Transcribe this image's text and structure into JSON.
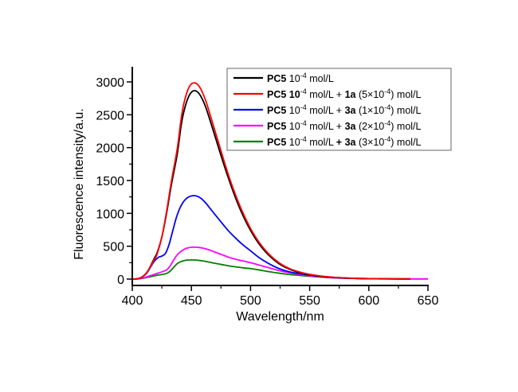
{
  "chart_data": {
    "type": "line",
    "title": "",
    "xlabel": "Wavelength/nm",
    "ylabel": "Fluorescence intensity/a.u.",
    "xlim": [
      400,
      650
    ],
    "ylim": [
      0,
      3250
    ],
    "xticks": [
      400,
      450,
      500,
      550,
      600,
      650
    ],
    "xtick_labels": [
      "400",
      "450",
      "500",
      "550",
      "600",
      "650"
    ],
    "yticks": [
      0,
      500,
      1000,
      1500,
      2000,
      2500,
      3000
    ],
    "ytick_labels": [
      "0",
      "500",
      "1000",
      "1500",
      "2000",
      "2500",
      "3000"
    ],
    "grid": false,
    "legend_position": "top-right",
    "series": [
      {
        "name": "PC5 10-4 mol/L",
        "legend": [
          {
            "text": "PC5",
            "bold": true
          },
          {
            "text": " 10",
            "bold": false
          },
          {
            "text": "-4",
            "sup": true
          },
          {
            "text": " mol/L",
            "bold": false
          }
        ],
        "color": "#000000",
        "x": [
          400,
          404,
          407,
          410,
          413,
          416,
          419,
          421,
          425,
          429,
          433,
          438,
          441,
          443,
          446,
          449,
          452,
          455,
          458,
          462,
          466,
          470,
          475,
          481,
          487,
          493,
          500,
          507,
          515,
          524,
          533,
          542,
          550,
          560,
          570,
          580,
          590,
          600,
          610,
          620,
          635
        ],
        "y": [
          0,
          5,
          20,
          55,
          120,
          220,
          330,
          400,
          640,
          1000,
          1430,
          1900,
          2300,
          2500,
          2700,
          2820,
          2865,
          2850,
          2780,
          2620,
          2400,
          2170,
          1880,
          1550,
          1250,
          990,
          740,
          540,
          370,
          235,
          150,
          95,
          65,
          40,
          25,
          16,
          10,
          6,
          4,
          3,
          2
        ]
      },
      {
        "name": "PC5 10-4 mol/L + 1a (5x10-4) mol/L",
        "legend": [
          {
            "text": "PC5",
            "bold": true
          },
          {
            "text": " 10",
            "bold": true
          },
          {
            "text": "-4",
            "sup": true
          },
          {
            "text": " mol/L + ",
            "bold": false
          },
          {
            "text": "1a",
            "bold": true
          },
          {
            "text": " (5×10",
            "bold": false
          },
          {
            "text": "-4",
            "sup": true
          },
          {
            "text": ") mol/L",
            "bold": false
          }
        ],
        "color": "#ff0000",
        "x": [
          400,
          404,
          407,
          410,
          413,
          416,
          419,
          421,
          425,
          429,
          433,
          438,
          441,
          443,
          446,
          449,
          452,
          455,
          458,
          462,
          466,
          470,
          475,
          481,
          487,
          493,
          500,
          507,
          515,
          524,
          533,
          542,
          550,
          560,
          570,
          580,
          590,
          600,
          610,
          620,
          635
        ],
        "y": [
          0,
          5,
          20,
          55,
          120,
          210,
          310,
          380,
          640,
          1030,
          1480,
          1980,
          2400,
          2620,
          2830,
          2950,
          2985,
          2965,
          2890,
          2720,
          2490,
          2250,
          1950,
          1600,
          1295,
          1030,
          770,
          565,
          390,
          250,
          160,
          105,
          72,
          45,
          28,
          18,
          12,
          8,
          5,
          3,
          2
        ]
      },
      {
        "name": "PC5 10-4 mol/L + 3a (1x10-4) mol/L",
        "legend": [
          {
            "text": "PC5",
            "bold": true
          },
          {
            "text": " 10",
            "bold": false
          },
          {
            "text": "-4",
            "sup": true
          },
          {
            "text": " mol/L + ",
            "bold": false
          },
          {
            "text": "3a",
            "bold": true
          },
          {
            "text": " (1×10",
            "bold": false
          },
          {
            "text": "-4",
            "sup": true
          },
          {
            "text": ") mol/L",
            "bold": false
          }
        ],
        "color": "#0000ff",
        "x": [
          400,
          404,
          407,
          410,
          413,
          416,
          419,
          422,
          425,
          428,
          431,
          434,
          437,
          440,
          443,
          446,
          449,
          452,
          455,
          458,
          462,
          466,
          470,
          475,
          481,
          487,
          493,
          500,
          507,
          515,
          524,
          533,
          542,
          550,
          560,
          570,
          580,
          590,
          600,
          610,
          620,
          635
        ],
        "y": [
          0,
          5,
          18,
          50,
          110,
          200,
          280,
          330,
          350,
          390,
          520,
          720,
          920,
          1070,
          1170,
          1230,
          1260,
          1270,
          1260,
          1230,
          1160,
          1070,
          980,
          870,
          740,
          630,
          530,
          430,
          330,
          240,
          160,
          110,
          80,
          60,
          40,
          25,
          16,
          10,
          7,
          5,
          3,
          2
        ]
      },
      {
        "name": "PC5 10-4 mol/L + 3a (2x10-4) mol/L",
        "legend": [
          {
            "text": "PC5",
            "bold": true
          },
          {
            "text": " 10",
            "bold": false
          },
          {
            "text": "-4",
            "sup": true
          },
          {
            "text": " mol/L + ",
            "bold": false
          },
          {
            "text": "3a",
            "bold": true
          },
          {
            "text": " (2×10",
            "bold": false
          },
          {
            "text": "-4",
            "sup": true
          },
          {
            "text": ") mol/L",
            "bold": false
          }
        ],
        "color": "#ff00ff",
        "x": [
          400,
          405,
          410,
          415,
          420,
          425,
          429,
          432,
          435,
          438,
          441,
          444,
          447,
          450,
          453,
          456,
          460,
          465,
          470,
          476,
          482,
          488,
          494,
          500,
          507,
          515,
          524,
          533,
          542,
          550,
          560,
          570,
          580,
          590,
          600,
          610,
          620,
          635,
          650
        ],
        "y": [
          0,
          5,
          20,
          50,
          80,
          110,
          140,
          200,
          290,
          370,
          420,
          455,
          475,
          484,
          485,
          482,
          470,
          445,
          410,
          370,
          330,
          300,
          275,
          250,
          215,
          175,
          130,
          95,
          70,
          50,
          32,
          20,
          13,
          9,
          6,
          4,
          3,
          2,
          2
        ]
      },
      {
        "name": "PC5 10-4 mol/L + 3a (3x10-4) mol/L",
        "legend": [
          {
            "text": "PC5",
            "bold": true
          },
          {
            "text": " 10",
            "bold": false
          },
          {
            "text": "-4",
            "sup": true
          },
          {
            "text": " mol/L ",
            "bold": false
          },
          {
            "text": "+ 3a",
            "bold": true
          },
          {
            "text": " (3×10",
            "bold": false
          },
          {
            "text": "-4",
            "sup": true
          },
          {
            "text": ") mol/L",
            "bold": false
          }
        ],
        "color": "#008000",
        "x": [
          400,
          405,
          410,
          415,
          420,
          425,
          429,
          432,
          435,
          438,
          441,
          444,
          447,
          450,
          453,
          456,
          460,
          465,
          470,
          476,
          482,
          488,
          494,
          500,
          507,
          515,
          524,
          533,
          542,
          550,
          560,
          570,
          580,
          590,
          600,
          610,
          620,
          635,
          650
        ],
        "y": [
          0,
          4,
          15,
          35,
          55,
          70,
          85,
          120,
          180,
          235,
          265,
          282,
          290,
          292,
          290,
          285,
          275,
          258,
          240,
          220,
          200,
          185,
          170,
          160,
          140,
          115,
          90,
          70,
          55,
          42,
          30,
          20,
          14,
          10,
          7,
          5,
          4,
          3,
          3
        ]
      }
    ]
  }
}
